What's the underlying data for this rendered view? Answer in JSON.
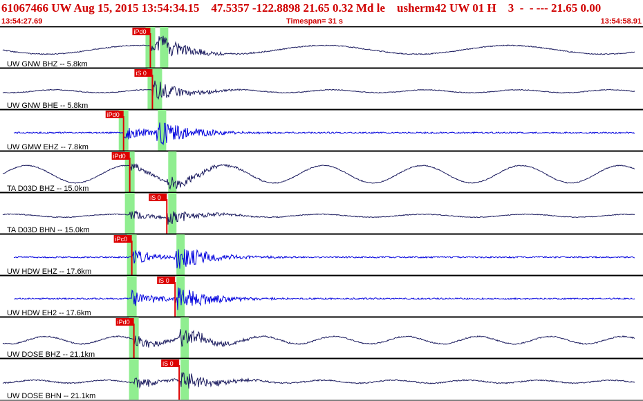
{
  "header": {
    "title": "61067466 UW Aug 15, 2015 13:54:34.15    47.5357 -122.8898 21.65 0.32 Md le    usherm42 UW 01 H    3  -  - --- 21.65 0.00",
    "start_time": "13:54:27.69",
    "timespan": "Timespan=  31 s",
    "end_time": "13:54:58.91"
  },
  "colors": {
    "header_text": "#d00000",
    "trace_dark": "#1a1a5e",
    "trace_blue": "#0000dd",
    "pick_red": "#dd0000",
    "window_green": "#90ee90"
  },
  "panels": [
    {
      "label": "UW GNW BHZ -- 5.8km",
      "color": "dark",
      "pick": "iPd0",
      "pick_time": 7.3,
      "s_time": 7.7,
      "noise": 0.6,
      "sine_amp": 0.35,
      "sine_period": 9.0
    },
    {
      "label": "UW GNW BHE -- 5.8km",
      "color": "dark",
      "pick": "iS 0",
      "pick_time": 7.4,
      "s_time": 7.4,
      "noise": 0.5,
      "sine_amp": 0.12,
      "sine_period": 4.5
    },
    {
      "label": "UW GMW EHZ -- 7.8km",
      "color": "blue",
      "pick": "iPd0",
      "pick_time": 6.0,
      "s_time": 7.6,
      "noise": 0.9,
      "sine_amp": 0.0,
      "sine_period": 1.0
    },
    {
      "label": "TA D03D BHZ -- 15.0km",
      "color": "dark",
      "pick": "iPd0",
      "pick_time": 6.3,
      "s_time": 8.1,
      "noise": 0.5,
      "sine_amp": 0.7,
      "sine_period": 4.8
    },
    {
      "label": "TA D03D BHN -- 15.0km",
      "color": "dark",
      "pick": "iS 0",
      "pick_time": 6.3,
      "s_time": 8.1,
      "noise": 0.5,
      "sine_amp": 0.12,
      "sine_period": 5.0
    },
    {
      "label": "UW HDW EHZ -- 17.6km",
      "color": "blue",
      "pick": "iPc0",
      "pick_time": 6.4,
      "s_time": 8.5,
      "noise": 0.9,
      "sine_amp": 0.0,
      "sine_period": 1.0
    },
    {
      "label": "UW HDW EH2 -- 17.6km",
      "color": "blue",
      "pick": "iS 0",
      "pick_time": 6.4,
      "s_time": 8.5,
      "noise": 0.9,
      "sine_amp": 0.0,
      "sine_period": 1.0
    },
    {
      "label": "UW DOSE BHZ -- 21.1km",
      "color": "dark",
      "pick": "iPd0",
      "pick_time": 6.5,
      "s_time": 8.7,
      "noise": 0.7,
      "sine_amp": 0.3,
      "sine_period": 3.5
    },
    {
      "label": "UW DOSE BHN -- 21.1km",
      "color": "dark",
      "pick": "iS 0",
      "pick_time": 6.5,
      "s_time": 8.7,
      "noise": 0.7,
      "sine_amp": 0.12,
      "sine_period": 3.5
    }
  ]
}
